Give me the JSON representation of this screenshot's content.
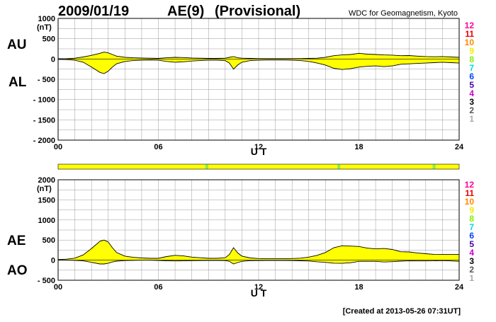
{
  "header": {
    "date": "2009/01/19",
    "index": "AE(9)",
    "status": "(Provisional)",
    "source": "WDC for Geomagnetism, Kyoto"
  },
  "footer": {
    "created": "[Created at 2013-05-26 07:31UT]"
  },
  "count_scale": {
    "labels": [
      "12",
      "11",
      "10",
      "9",
      "8",
      "7",
      "6",
      "5",
      "4",
      "3",
      "2",
      "1"
    ],
    "colors": [
      "#ff0099",
      "#ee0000",
      "#ff8800",
      "#eeee00",
      "#88ee00",
      "#00dddd",
      "#0044ff",
      "#4400aa",
      "#cc00cc",
      "#000000",
      "#555555",
      "#aaaaaa"
    ]
  },
  "chart_data": [
    {
      "type": "area",
      "id": "au_al",
      "unit": "(nT)",
      "labels": [
        "AU",
        "AL"
      ],
      "xlabel": "U T",
      "xlim": [
        0,
        24
      ],
      "ylim": [
        -2000,
        1000
      ],
      "x_ticks": [
        0,
        6,
        12,
        18,
        24
      ],
      "x_tick_labels": [
        "00",
        "06",
        "12",
        "18",
        "24"
      ],
      "y_ticks": [
        1000,
        500,
        0,
        -500,
        -1000,
        -1500,
        -2000
      ],
      "y_tick_labels": [
        "1000",
        "500",
        "0",
        "- 500",
        "- 1000",
        "- 1500",
        "- 2000"
      ],
      "fill_color": "#ffff00",
      "grid": true,
      "series": [
        {
          "name": "AU",
          "x": [
            0,
            0.5,
            1,
            1.5,
            2,
            2.5,
            2.75,
            3,
            3.25,
            3.5,
            4,
            4.5,
            5,
            5.5,
            6,
            6.5,
            7,
            7.5,
            8,
            8.5,
            9,
            9.5,
            10,
            10.25,
            10.5,
            10.75,
            11,
            11.5,
            12,
            12.5,
            13,
            13.5,
            14,
            14.5,
            15,
            15.5,
            16,
            16.5,
            17,
            17.5,
            18,
            18.5,
            19,
            19.5,
            20,
            20.5,
            21,
            21.5,
            22,
            22.5,
            23,
            23.5,
            24
          ],
          "values": [
            5,
            10,
            20,
            50,
            90,
            140,
            170,
            150,
            110,
            70,
            40,
            30,
            25,
            20,
            15,
            30,
            40,
            35,
            25,
            20,
            15,
            15,
            20,
            40,
            60,
            30,
            20,
            15,
            10,
            10,
            10,
            10,
            10,
            10,
            15,
            20,
            40,
            80,
            100,
            110,
            140,
            120,
            110,
            100,
            95,
            80,
            85,
            70,
            60,
            55,
            60,
            50,
            40
          ]
        },
        {
          "name": "AL",
          "x": [
            0,
            0.5,
            1,
            1.5,
            2,
            2.5,
            2.75,
            3,
            3.25,
            3.5,
            4,
            4.5,
            5,
            5.5,
            6,
            6.5,
            7,
            7.5,
            8,
            8.5,
            9,
            9.5,
            10,
            10.25,
            10.5,
            10.75,
            11,
            11.5,
            12,
            12.5,
            13,
            13.5,
            14,
            14.5,
            15,
            15.5,
            16,
            16.5,
            17,
            17.5,
            18,
            18.5,
            19,
            19.5,
            20,
            20.5,
            21,
            21.5,
            22,
            22.5,
            23,
            23.5,
            24
          ],
          "values": [
            -10,
            -15,
            -30,
            -80,
            -200,
            -330,
            -360,
            -300,
            -200,
            -120,
            -60,
            -40,
            -30,
            -25,
            -30,
            -60,
            -80,
            -70,
            -50,
            -40,
            -30,
            -30,
            -40,
            -100,
            -250,
            -150,
            -80,
            -40,
            -30,
            -25,
            -25,
            -25,
            -30,
            -40,
            -60,
            -100,
            -150,
            -230,
            -260,
            -240,
            -200,
            -180,
            -170,
            -190,
            -170,
            -130,
            -120,
            -110,
            -100,
            -90,
            -80,
            -90,
            -100
          ]
        }
      ]
    },
    {
      "type": "area",
      "id": "ae_ao",
      "unit": "(nT)",
      "labels": [
        "AE",
        "AO"
      ],
      "xlabel": "U T",
      "xlim": [
        0,
        24
      ],
      "ylim": [
        -500,
        2000
      ],
      "x_ticks": [
        0,
        6,
        12,
        18,
        24
      ],
      "x_tick_labels": [
        "00",
        "06",
        "12",
        "18",
        "24"
      ],
      "y_ticks": [
        2000,
        1500,
        1000,
        500,
        0,
        -500
      ],
      "y_tick_labels": [
        "2000",
        "1500",
        "1000",
        "500",
        "0",
        "- 500"
      ],
      "fill_color": "#ffff00",
      "grid": true,
      "series": [
        {
          "name": "AE",
          "x": [
            0,
            0.5,
            1,
            1.5,
            2,
            2.5,
            2.75,
            3,
            3.25,
            3.5,
            4,
            4.5,
            5,
            5.5,
            6,
            6.5,
            7,
            7.5,
            8,
            8.5,
            9,
            9.5,
            10,
            10.25,
            10.5,
            10.75,
            11,
            11.5,
            12,
            12.5,
            13,
            13.5,
            14,
            14.5,
            15,
            15.5,
            16,
            16.5,
            17,
            17.5,
            18,
            18.5,
            19,
            19.5,
            20,
            20.5,
            21,
            21.5,
            22,
            22.5,
            23,
            23.5,
            24
          ],
          "values": [
            15,
            25,
            50,
            130,
            290,
            470,
            500,
            450,
            310,
            190,
            100,
            70,
            55,
            45,
            45,
            90,
            120,
            105,
            75,
            60,
            45,
            45,
            60,
            140,
            310,
            180,
            100,
            55,
            40,
            35,
            35,
            35,
            40,
            50,
            75,
            120,
            190,
            310,
            360,
            350,
            340,
            300,
            280,
            290,
            265,
            210,
            205,
            180,
            160,
            145,
            140,
            140,
            140
          ]
        },
        {
          "name": "AO",
          "x": [
            0,
            0.5,
            1,
            1.5,
            2,
            2.5,
            2.75,
            3,
            3.25,
            3.5,
            4,
            4.5,
            5,
            5.5,
            6,
            6.5,
            7,
            7.5,
            8,
            8.5,
            9,
            9.5,
            10,
            10.25,
            10.5,
            10.75,
            11,
            11.5,
            12,
            12.5,
            13,
            13.5,
            14,
            14.5,
            15,
            15.5,
            16,
            16.5,
            17,
            17.5,
            18,
            18.5,
            19,
            19.5,
            20,
            20.5,
            21,
            21.5,
            22,
            22.5,
            23,
            23.5,
            24
          ],
          "values": [
            -2,
            -2,
            -5,
            -15,
            -55,
            -95,
            -95,
            -75,
            -45,
            -25,
            -10,
            -5,
            -2,
            -2,
            -7,
            -15,
            -20,
            -17,
            -12,
            -10,
            -7,
            -7,
            -10,
            -30,
            -95,
            -60,
            -30,
            -12,
            -10,
            -7,
            -7,
            -7,
            -10,
            -15,
            -22,
            -40,
            -55,
            -75,
            -80,
            -65,
            -30,
            -30,
            -30,
            -45,
            -37,
            -25,
            -17,
            -20,
            -20,
            -17,
            -10,
            -20,
            -30
          ]
        }
      ]
    }
  ],
  "station_bar": {
    "fill_color": "#ffff00",
    "marker_color": "#88ee44",
    "marker_hours": [
      8.9,
      16.8,
      22.5
    ]
  }
}
